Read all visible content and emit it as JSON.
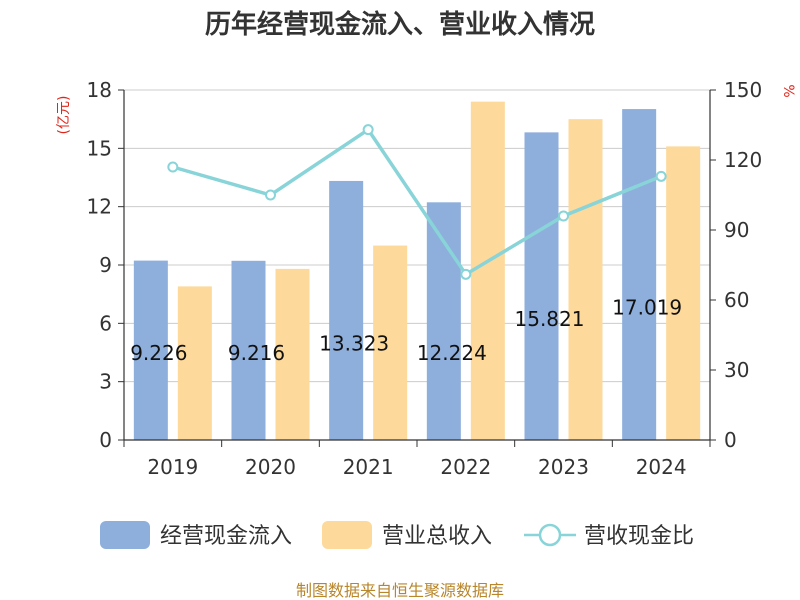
{
  "chart_data": {
    "type": "bar",
    "title": "历年经营现金流入、营业收入情况",
    "categories": [
      "2019",
      "2020",
      "2021",
      "2022",
      "2023",
      "2024"
    ],
    "series": [
      {
        "name": "经营现金流入",
        "axis": "left",
        "kind": "bar",
        "color": "#8eaedc",
        "values": [
          9.226,
          9.216,
          13.323,
          12.224,
          15.821,
          17.019
        ],
        "labels": [
          "9.226",
          "9.216",
          "13.323",
          "12.224",
          "15.821",
          "17.019"
        ]
      },
      {
        "name": "营业总收入",
        "axis": "left",
        "kind": "bar",
        "color": "#fdd99b",
        "values": [
          7.9,
          8.8,
          10.0,
          17.4,
          16.5,
          15.1
        ]
      },
      {
        "name": "营收现金比",
        "axis": "right",
        "kind": "line",
        "color": "#88d4d8",
        "values": [
          117,
          105,
          133,
          71,
          96,
          113
        ]
      }
    ],
    "left_axis": {
      "unit": "(亿元)",
      "ylim": [
        0,
        18
      ],
      "ticks": [
        0,
        3,
        6,
        9,
        12,
        15,
        18
      ]
    },
    "right_axis": {
      "unit": "%",
      "ylim": [
        0,
        150
      ],
      "ticks": [
        0,
        30,
        60,
        90,
        120,
        150
      ]
    },
    "source": "制图数据来自恒生聚源数据库"
  }
}
